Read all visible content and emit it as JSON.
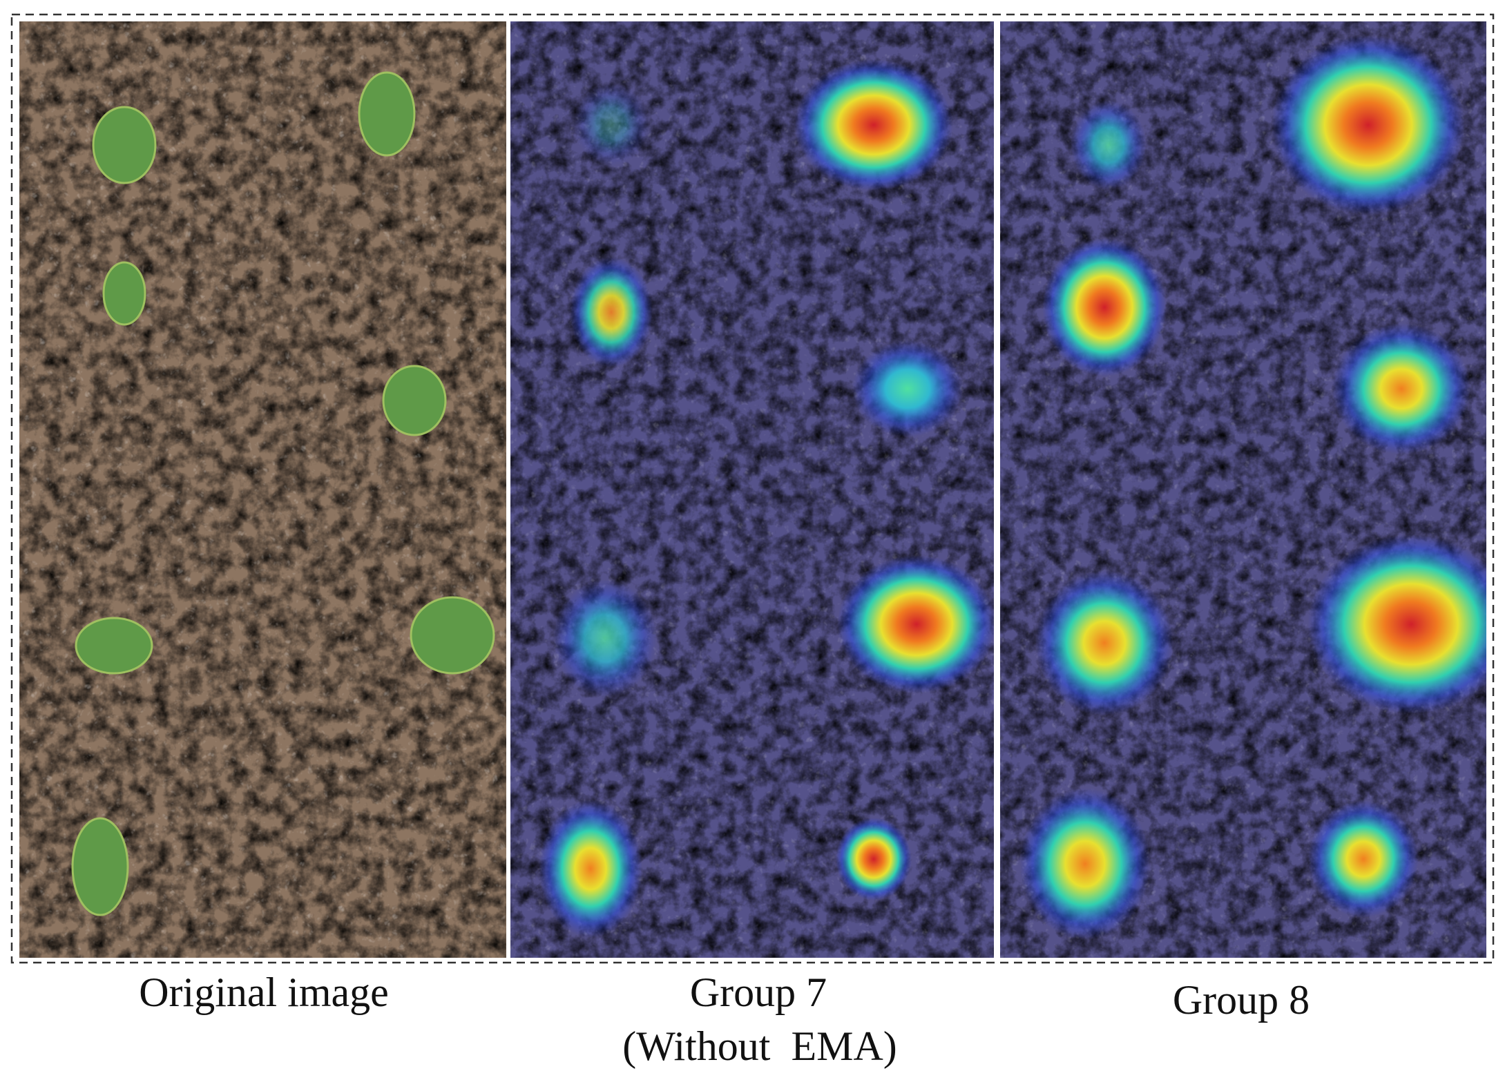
{
  "captions": {
    "original": "Original image",
    "group7": "Group 7",
    "group7_note": "(Without  EMA)",
    "group8": "Group 8"
  }
}
